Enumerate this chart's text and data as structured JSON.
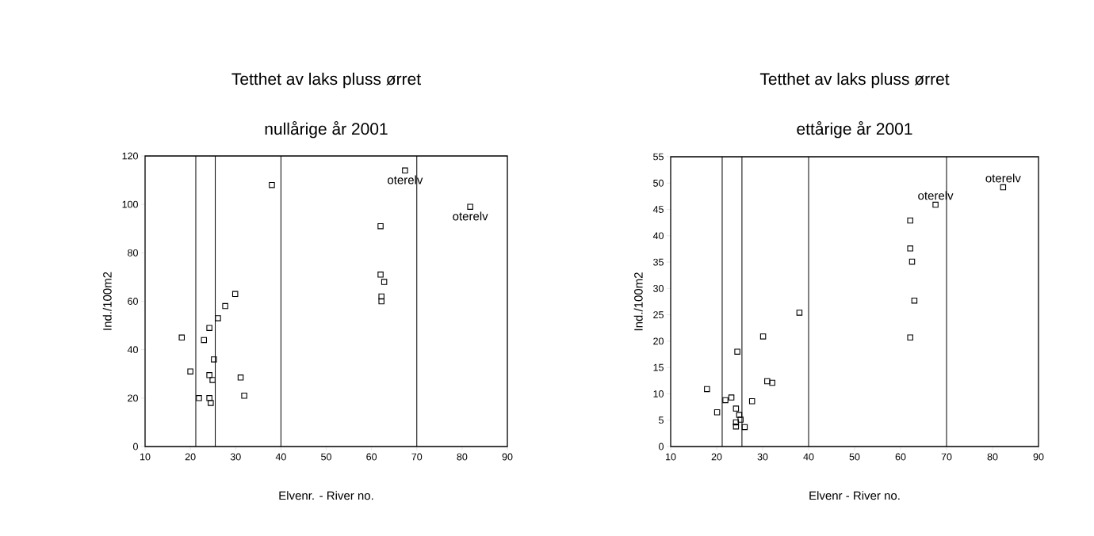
{
  "chart_data": [
    {
      "type": "scatter",
      "title": "Tetthet av laks pluss ørret",
      "subtitle": "nullårige  år 2001",
      "xlabel": "Elvenr. - River no.",
      "ylabel": "Ind./100m2",
      "x": [
        38,
        29.9,
        27.7,
        26.1,
        24.2,
        18.1,
        23.0,
        25.2,
        20.0,
        24.2,
        24.9,
        31.1,
        21.9,
        24.2,
        31.9,
        24.5,
        67.4,
        81.8,
        62.0,
        62.0,
        62.8,
        62.2,
        62.2
      ],
      "values": [
        108,
        63,
        58,
        53,
        49,
        45,
        44,
        36,
        31,
        29.5,
        27.5,
        28.5,
        20,
        20,
        21,
        18,
        114,
        99,
        91,
        71,
        68,
        62,
        60
      ],
      "color": "#000000",
      "marker": "square",
      "xlim": [
        10,
        90
      ],
      "xticks": [
        10,
        20,
        30,
        40,
        50,
        60,
        70,
        80,
        90
      ],
      "ylim": [
        0,
        120
      ],
      "yticks": [
        0,
        20,
        40,
        60,
        80,
        100,
        120
      ],
      "ref_lines": [
        {
          "axis": "x",
          "value": 21.2,
          "color": "#000000"
        },
        {
          "axis": "x",
          "value": 25.5,
          "color": "#000000"
        },
        {
          "axis": "x",
          "value": 40,
          "color": "#000000"
        },
        {
          "axis": "x",
          "value": 70,
          "color": "#000000"
        }
      ],
      "annotations": [
        {
          "text": "oterelv",
          "x": 67.4,
          "y": 114
        },
        {
          "text": "oterelv",
          "x": 81.8,
          "y": 99
        }
      ]
    },
    {
      "type": "scatter",
      "title": "Tetthet av laks pluss ørret",
      "subtitle": "ettårige år 2001",
      "xlabel": "Elvenr - River no.",
      "ylabel": "Ind./100m2",
      "x": [
        38.0,
        30.1,
        24.5,
        31.0,
        32.1,
        17.9,
        23.2,
        21.9,
        27.7,
        24.2,
        20.1,
        24.9,
        25.2,
        24.2,
        24.2,
        26.1,
        82.3,
        67.6,
        62.1,
        62.1,
        62.5,
        63.0,
        62.1
      ],
      "values": [
        25.4,
        20.9,
        18.0,
        12.4,
        12.1,
        10.9,
        9.3,
        8.8,
        8.6,
        7.2,
        6.5,
        6.0,
        5.1,
        4.6,
        3.8,
        3.7,
        49.2,
        45.9,
        42.9,
        37.6,
        35.1,
        27.7,
        20.7
      ],
      "color": "#000000",
      "marker": "square",
      "xlim": [
        10,
        90
      ],
      "xticks": [
        10,
        20,
        30,
        40,
        50,
        60,
        70,
        80,
        90
      ],
      "ylim": [
        0,
        55
      ],
      "yticks": [
        0,
        5,
        10,
        15,
        20,
        25,
        30,
        35,
        40,
        45,
        50,
        55
      ],
      "ref_lines": [
        {
          "axis": "x",
          "value": 21.2,
          "color": "#000000"
        },
        {
          "axis": "x",
          "value": 25.5,
          "color": "#000000"
        },
        {
          "axis": "x",
          "value": 40,
          "color": "#000000"
        },
        {
          "axis": "x",
          "value": 70,
          "color": "#000000"
        }
      ],
      "annotations": [
        {
          "text": "oterelv",
          "x": 67.6,
          "y": 45.9
        },
        {
          "text": "oterelv",
          "x": 82.3,
          "y": 49.2
        }
      ]
    }
  ]
}
